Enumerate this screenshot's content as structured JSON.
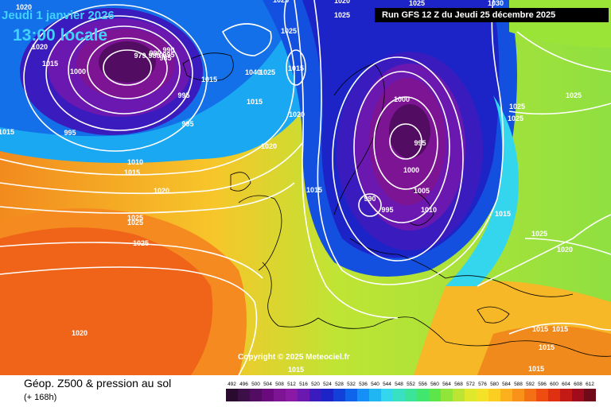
{
  "header": {
    "date": "Jeudi 1 janvier 2026",
    "local_time": "13:00 locale",
    "run_info": "Run GFS 12 Z du Jeudi 25 décembre 2025"
  },
  "map": {
    "copyright": "Copyright © 2025 Meteociel.fr",
    "pressure_labels": [
      "1020",
      "1020",
      "1015",
      "1000",
      "979",
      "980",
      "985",
      "990",
      "995",
      "1015",
      "1040",
      "1025",
      "1025",
      "1025",
      "1015",
      "1020",
      "1020",
      "1025",
      "995",
      "1015",
      "1010",
      "1015",
      "1020",
      "1025",
      "1025",
      "1025",
      "1020",
      "1030",
      "1025",
      "1000",
      "995",
      "1000",
      "1005",
      "1010",
      "990",
      "995",
      "1015",
      "1015",
      "1025",
      "1025",
      "1025",
      "1015",
      "1025",
      "1020",
      "1015",
      "1015",
      "1015",
      "1015",
      "995",
      "995",
      "990",
      "1020",
      "1015"
    ]
  },
  "footer": {
    "title": "Géop. Z500 & pression au sol",
    "subtitle": "(+ 168h)"
  },
  "legend": {
    "labels": [
      "492",
      "496",
      "500",
      "504",
      "508",
      "512",
      "516",
      "520",
      "524",
      "528",
      "532",
      "536",
      "540",
      "544",
      "548",
      "552",
      "556",
      "560",
      "564",
      "568",
      "572",
      "576",
      "580",
      "584",
      "588",
      "592",
      "596",
      "600",
      "604",
      "608",
      "612"
    ],
    "colors": [
      "#2a0a2e",
      "#3c0f48",
      "#520c62",
      "#6a0a7c",
      "#7c1494",
      "#8a1aa6",
      "#6a18b0",
      "#3a1cbe",
      "#1c24c8",
      "#1240d8",
      "#0e64ea",
      "#1490f6",
      "#20b6f4",
      "#34d6ee",
      "#3ae0c2",
      "#3ce49a",
      "#40e66e",
      "#5ce64a",
      "#90e43a",
      "#bce432",
      "#e0e82c",
      "#f4e228",
      "#fcce22",
      "#fcb01e",
      "#f89218",
      "#f47014",
      "#ee4c10",
      "#e03012",
      "#c41a16",
      "#a00c1c",
      "#700a18"
    ]
  }
}
